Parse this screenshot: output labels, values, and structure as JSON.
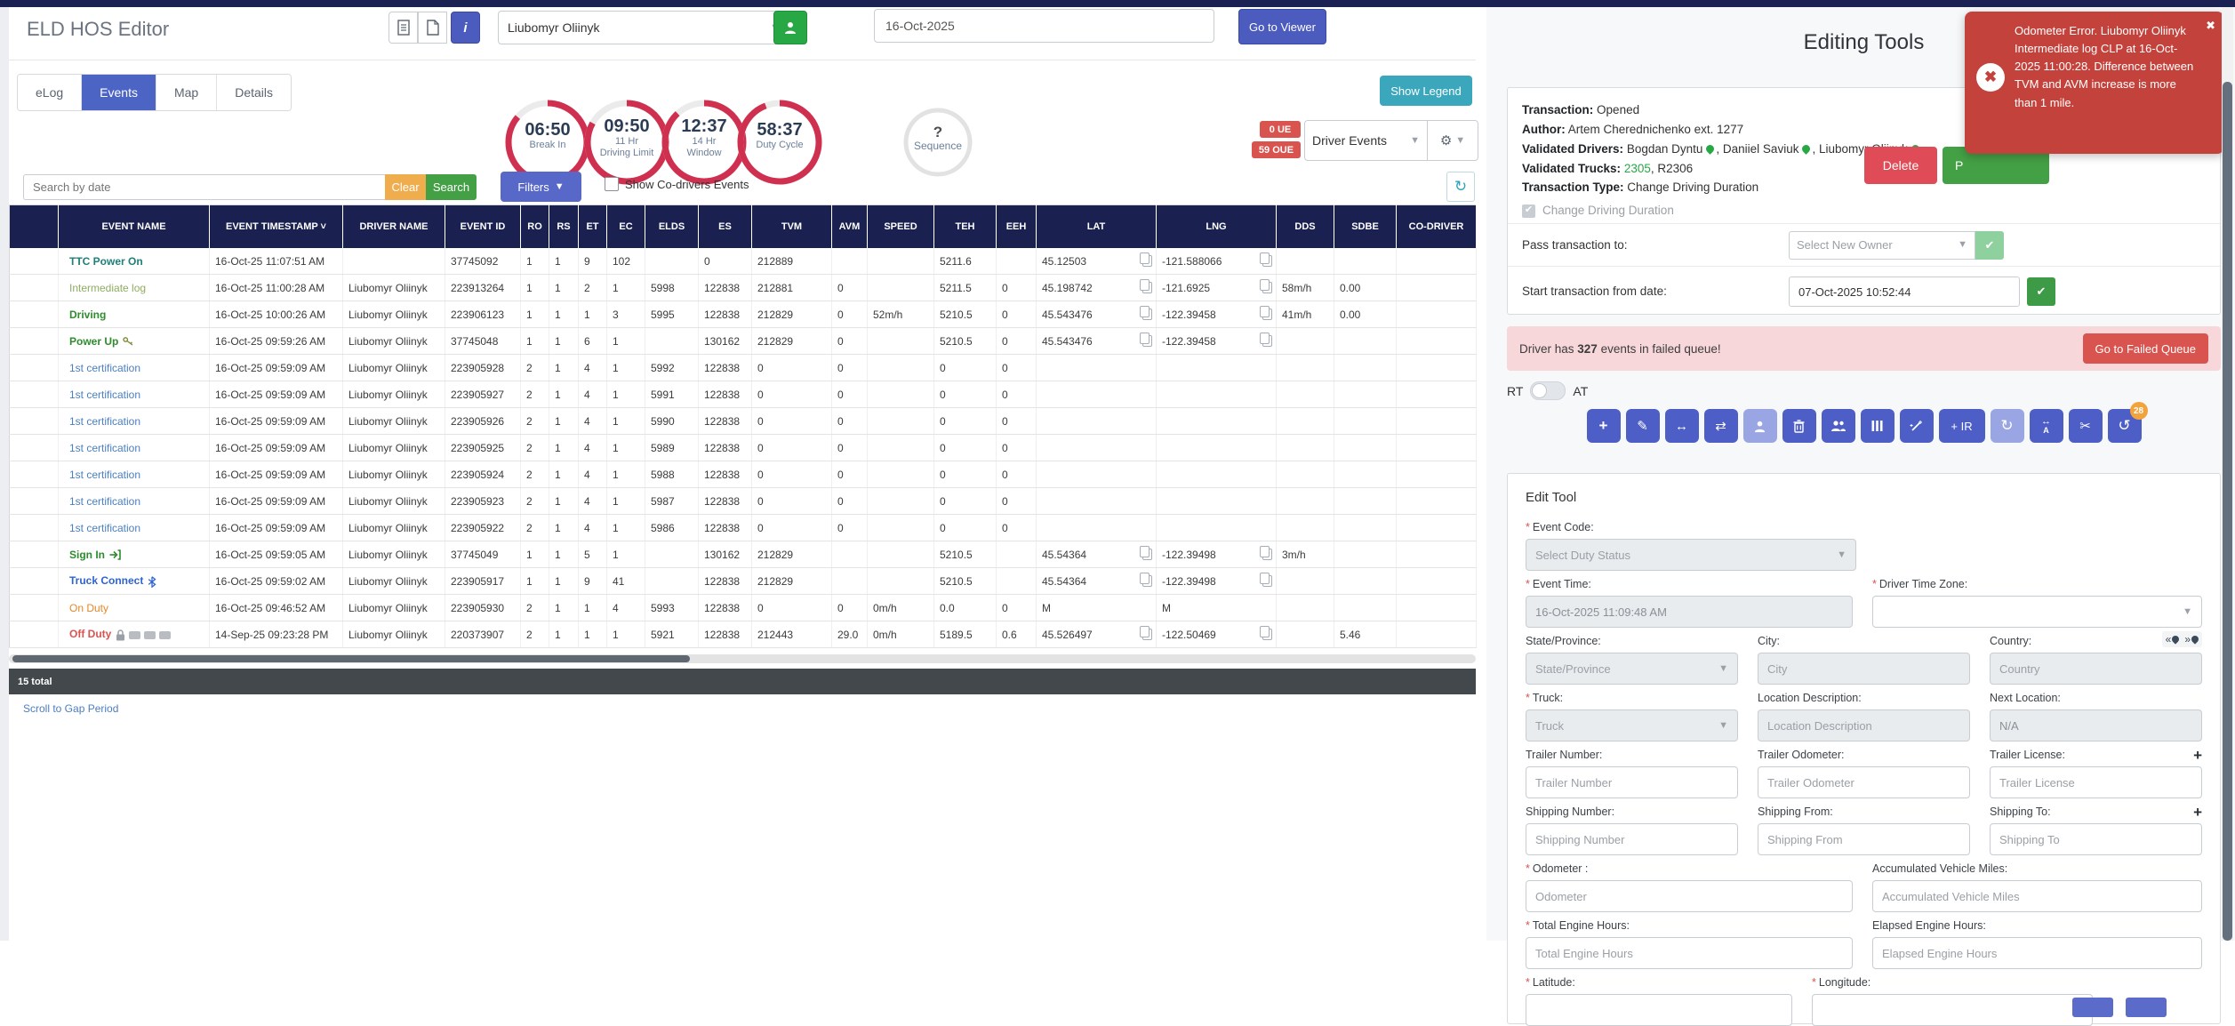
{
  "header": {
    "title": "ELD HOS Editor",
    "driver": "Liubomyr Oliinyk",
    "date": "16-Oct-2025",
    "viewer_btn": "Go to Viewer",
    "info_btn": "i"
  },
  "icons": {
    "doc": "document-icon",
    "page": "note-icon",
    "info": "info-icon",
    "person": "person-icon",
    "gear": "gear-icon",
    "refresh": "refresh-icon",
    "copy": "copy-icon",
    "key": "key-icon",
    "signin": "sign-in-icon",
    "bluetooth": "bluetooth-icon",
    "lock": "lock-icon",
    "camera": "camera-icon",
    "pin": "pushpin-icon",
    "close": "close-icon",
    "error": "error-circle-icon"
  },
  "tabs": [
    {
      "label": "eLog"
    },
    {
      "label": "Events"
    },
    {
      "label": "Map"
    },
    {
      "label": "Details"
    }
  ],
  "gauges": [
    {
      "value": "06:50",
      "line1": "Break In",
      "line2": ""
    },
    {
      "value": "09:50",
      "line1": "11 Hr",
      "line2": "Driving Limit"
    },
    {
      "value": "12:37",
      "line1": "14 Hr",
      "line2": "Window"
    },
    {
      "value": "58:37",
      "line1": "Duty Cycle",
      "line2": ""
    }
  ],
  "sequence": {
    "value": "?",
    "label": "Sequence"
  },
  "legend_btn": "Show Legend",
  "queue_badges": {
    "ue": "0 UE",
    "oue": "59 OUE"
  },
  "events_dropdown": "Driver Events",
  "search": {
    "placeholder": "Search by date",
    "clear": "Clear",
    "search": "Search",
    "filters": "Filters",
    "show_codrivers": "Show Co-drivers Events",
    "refresh_glyph": "↻"
  },
  "table": {
    "columns": [
      "",
      "EVENT NAME",
      "EVENT TIMESTAMP",
      "DRIVER NAME",
      "EVENT ID",
      "RO",
      "RS",
      "ET",
      "EC",
      "ELDS",
      "ES",
      "TVM",
      "AVM",
      "SPEED",
      "TEH",
      "EEH",
      "LAT",
      "LNG",
      "DDS",
      "SDBE",
      "CO-DRIVER"
    ],
    "rows": [
      {
        "style": "n-teal",
        "name": "TTC Power On",
        "icon": "",
        "ts": "16-Oct-25 11:07:51 AM",
        "driver": "",
        "id": "37745092",
        "ro": "1",
        "rs": "1",
        "et": "9",
        "ec": "102",
        "elds": "",
        "es": "0",
        "tvm": "212889",
        "avm": "",
        "speed": "",
        "teh": "5211.6",
        "eeh": "",
        "lat": "45.12503",
        "lng": "-121.588066",
        "geo_copy": true,
        "dds": "",
        "sdbe": "",
        "codriver": ""
      },
      {
        "style": "n-lgreen",
        "name": "Intermediate log",
        "icon": "",
        "ts": "16-Oct-25 11:00:28 AM",
        "driver": "Liubomyr Oliinyk",
        "id": "223913264",
        "ro": "1",
        "rs": "1",
        "et": "2",
        "ec": "1",
        "elds": "5998",
        "es": "122838",
        "tvm": "212881",
        "avm": "0",
        "speed": "",
        "teh": "5211.5",
        "eeh": "0",
        "lat": "45.198742",
        "lng": "-121.6925",
        "geo_copy": true,
        "dds": "58m/h",
        "sdbe": "0.00",
        "codriver": ""
      },
      {
        "style": "n-green",
        "name": "Driving",
        "icon": "",
        "ts": "16-Oct-25 10:00:26 AM",
        "driver": "Liubomyr Oliinyk",
        "id": "223906123",
        "ro": "1",
        "rs": "1",
        "et": "1",
        "ec": "3",
        "elds": "5995",
        "es": "122838",
        "tvm": "212829",
        "avm": "0",
        "speed": "52m/h",
        "teh": "5210.5",
        "eeh": "0",
        "lat": "45.543476",
        "lng": "-122.39458",
        "geo_copy": true,
        "dds": "41m/h",
        "sdbe": "0.00",
        "codriver": ""
      },
      {
        "style": "n-green",
        "name": "Power Up",
        "icon": "key",
        "ts": "16-Oct-25 09:59:26 AM",
        "driver": "Liubomyr Oliinyk",
        "id": "37745048",
        "ro": "1",
        "rs": "1",
        "et": "6",
        "ec": "1",
        "elds": "",
        "es": "130162",
        "tvm": "212829",
        "avm": "0",
        "speed": "",
        "teh": "5210.5",
        "eeh": "0",
        "lat": "45.543476",
        "lng": "-122.39458",
        "geo_copy": true,
        "dds": "",
        "sdbe": "",
        "codriver": ""
      },
      {
        "style": "n-blue",
        "name": "1st certification",
        "icon": "",
        "ts": "16-Oct-25 09:59:09 AM",
        "driver": "Liubomyr Oliinyk",
        "id": "223905928",
        "ro": "2",
        "rs": "1",
        "et": "4",
        "ec": "1",
        "elds": "5992",
        "es": "122838",
        "tvm": "0",
        "avm": "0",
        "speed": "",
        "teh": "0",
        "eeh": "0",
        "lat": "",
        "lng": "",
        "geo_copy": false,
        "dds": "",
        "sdbe": "",
        "codriver": ""
      },
      {
        "style": "n-blue",
        "name": "1st certification",
        "icon": "",
        "ts": "16-Oct-25 09:59:09 AM",
        "driver": "Liubomyr Oliinyk",
        "id": "223905927",
        "ro": "2",
        "rs": "1",
        "et": "4",
        "ec": "1",
        "elds": "5991",
        "es": "122838",
        "tvm": "0",
        "avm": "0",
        "speed": "",
        "teh": "0",
        "eeh": "0",
        "lat": "",
        "lng": "",
        "geo_copy": false,
        "dds": "",
        "sdbe": "",
        "codriver": ""
      },
      {
        "style": "n-blue",
        "name": "1st certification",
        "icon": "",
        "ts": "16-Oct-25 09:59:09 AM",
        "driver": "Liubomyr Oliinyk",
        "id": "223905926",
        "ro": "2",
        "rs": "1",
        "et": "4",
        "ec": "1",
        "elds": "5990",
        "es": "122838",
        "tvm": "0",
        "avm": "0",
        "speed": "",
        "teh": "0",
        "eeh": "0",
        "lat": "",
        "lng": "",
        "geo_copy": false,
        "dds": "",
        "sdbe": "",
        "codriver": ""
      },
      {
        "style": "n-blue",
        "name": "1st certification",
        "icon": "",
        "ts": "16-Oct-25 09:59:09 AM",
        "driver": "Liubomyr Oliinyk",
        "id": "223905925",
        "ro": "2",
        "rs": "1",
        "et": "4",
        "ec": "1",
        "elds": "5989",
        "es": "122838",
        "tvm": "0",
        "avm": "0",
        "speed": "",
        "teh": "0",
        "eeh": "0",
        "lat": "",
        "lng": "",
        "geo_copy": false,
        "dds": "",
        "sdbe": "",
        "codriver": ""
      },
      {
        "style": "n-blue",
        "name": "1st certification",
        "icon": "",
        "ts": "16-Oct-25 09:59:09 AM",
        "driver": "Liubomyr Oliinyk",
        "id": "223905924",
        "ro": "2",
        "rs": "1",
        "et": "4",
        "ec": "1",
        "elds": "5988",
        "es": "122838",
        "tvm": "0",
        "avm": "0",
        "speed": "",
        "teh": "0",
        "eeh": "0",
        "lat": "",
        "lng": "",
        "geo_copy": false,
        "dds": "",
        "sdbe": "",
        "codriver": ""
      },
      {
        "style": "n-blue",
        "name": "1st certification",
        "icon": "",
        "ts": "16-Oct-25 09:59:09 AM",
        "driver": "Liubomyr Oliinyk",
        "id": "223905923",
        "ro": "2",
        "rs": "1",
        "et": "4",
        "ec": "1",
        "elds": "5987",
        "es": "122838",
        "tvm": "0",
        "avm": "0",
        "speed": "",
        "teh": "0",
        "eeh": "0",
        "lat": "",
        "lng": "",
        "geo_copy": false,
        "dds": "",
        "sdbe": "",
        "codriver": ""
      },
      {
        "style": "n-blue",
        "name": "1st certification",
        "icon": "",
        "ts": "16-Oct-25 09:59:09 AM",
        "driver": "Liubomyr Oliinyk",
        "id": "223905922",
        "ro": "2",
        "rs": "1",
        "et": "4",
        "ec": "1",
        "elds": "5986",
        "es": "122838",
        "tvm": "0",
        "avm": "0",
        "speed": "",
        "teh": "0",
        "eeh": "0",
        "lat": "",
        "lng": "",
        "geo_copy": false,
        "dds": "",
        "sdbe": "",
        "codriver": ""
      },
      {
        "style": "n-green",
        "name": "Sign In",
        "icon": "signin",
        "ts": "16-Oct-25 09:59:05 AM",
        "driver": "Liubomyr Oliinyk",
        "id": "37745049",
        "ro": "1",
        "rs": "1",
        "et": "5",
        "ec": "1",
        "elds": "",
        "es": "130162",
        "tvm": "212829",
        "avm": "",
        "speed": "",
        "teh": "5210.5",
        "eeh": "",
        "lat": "45.54364",
        "lng": "-122.39498",
        "geo_copy": true,
        "dds": "3m/h",
        "sdbe": "",
        "codriver": ""
      },
      {
        "style": "n-bblue",
        "name": "Truck Connect",
        "icon": "bluetooth",
        "ts": "16-Oct-25 09:59:02 AM",
        "driver": "Liubomyr Oliinyk",
        "id": "223905917",
        "ro": "1",
        "rs": "1",
        "et": "9",
        "ec": "41",
        "elds": "",
        "es": "122838",
        "tvm": "212829",
        "avm": "",
        "speed": "",
        "teh": "5210.5",
        "eeh": "",
        "lat": "45.54364",
        "lng": "-122.39498",
        "geo_copy": true,
        "dds": "",
        "sdbe": "",
        "codriver": ""
      },
      {
        "style": "n-orange",
        "name": "On Duty",
        "icon": "",
        "ts": "16-Oct-25 09:46:52 AM",
        "driver": "Liubomyr Oliinyk",
        "id": "223905930",
        "ro": "2",
        "rs": "1",
        "et": "1",
        "ec": "4",
        "elds": "5993",
        "es": "122838",
        "tvm": "0",
        "avm": "0",
        "speed": "0m/h",
        "teh": "0.0",
        "eeh": "0",
        "lat": "M",
        "lng": "M",
        "geo_copy": false,
        "dds": "",
        "sdbe": "",
        "codriver": ""
      },
      {
        "style": "n-red",
        "name": "Off Duty",
        "icon": "lock",
        "ts": "14-Sep-25 09:23:28 PM",
        "driver": "Liubomyr Oliinyk",
        "id": "220373907",
        "ro": "2",
        "rs": "1",
        "et": "1",
        "ec": "1",
        "elds": "5921",
        "es": "122838",
        "tvm": "212443",
        "avm": "29.0",
        "speed": "0m/h",
        "teh": "5189.5",
        "eeh": "0.6",
        "lat": "45.526497",
        "lng": "-122.50469",
        "geo_copy": true,
        "dds": "",
        "sdbe": "5.46",
        "codriver": ""
      }
    ],
    "total": "15 total",
    "gap_link": "Scroll to Gap Period"
  },
  "editing": {
    "title": "Editing Tools",
    "transaction_label": "Transaction:",
    "transaction": "Opened",
    "author_label": "Author:",
    "author": "Artem Cherednichenko ext. 1277",
    "drivers_label": "Validated Drivers:",
    "drivers": [
      "Bogdan Dyntu",
      "Daniiel Saviuk",
      "Liubomyr Oliinyk"
    ],
    "trucks_label": "Validated Trucks:",
    "truck_green": "2305",
    "truck_rest": ", R2306",
    "type_label": "Transaction Type:",
    "type": "Change Driving Duration",
    "change_checkbox": "Change Driving Duration",
    "delete_btn": "Delete",
    "process_btn": "P",
    "pass_label": "Pass transaction to:",
    "pass_placeholder": "Select New Owner",
    "start_label": "Start transaction from date:",
    "start_value": "07-Oct-2025 10:52:44",
    "failed_prefix": "Driver has",
    "failed_count": "327",
    "failed_suffix": "events in failed queue!",
    "failed_btn": "Go to Failed Queue",
    "rt": "RT",
    "at": "AT",
    "toolbar": {
      "icons": [
        "plus-icon",
        "pencil-icon",
        "arrow-left-right-icon",
        "swap-arrows-icon",
        "person-icon",
        "trash-icon",
        "people-icon",
        "split-bars-icon",
        "magic-wand-icon",
        "plus-ir-button",
        "refresh-icon",
        "text-width-icon",
        "scissors-icon",
        "undo-icon"
      ],
      "ir_label": "+ IR",
      "badge": "28"
    }
  },
  "edit_tool": {
    "title": "Edit Tool",
    "event_code_label": "Event Code:",
    "event_code_placeholder": "Select Duty Status",
    "event_time_label": "Event Time:",
    "event_time_value": "16-Oct-2025 11:09:48 AM",
    "tz_label": "Driver Time Zone:",
    "state_label": "State/Province:",
    "state_placeholder": "State/Province",
    "city_label": "City:",
    "city_placeholder": "City",
    "country_label": "Country:",
    "country_placeholder": "Country",
    "truck_label": "Truck:",
    "truck_placeholder": "Truck",
    "locdesc_label": "Location Description:",
    "locdesc_placeholder": "Location Description",
    "nextloc_label": "Next Location:",
    "nextloc_value": "N/A",
    "trailer_num_label": "Trailer Number:",
    "trailer_num_placeholder": "Trailer Number",
    "trailer_odo_label": "Trailer Odometer:",
    "trailer_odo_placeholder": "Trailer Odometer",
    "trailer_lic_label": "Trailer License:",
    "trailer_lic_placeholder": "Trailer License",
    "ship_num_label": "Shipping Number:",
    "ship_num_placeholder": "Shipping Number",
    "ship_from_label": "Shipping From:",
    "ship_from_placeholder": "Shipping From",
    "ship_to_label": "Shipping To:",
    "ship_to_placeholder": "Shipping To",
    "odometer_label": "Odometer :",
    "odometer_placeholder": "Odometer",
    "avm_label": "Accumulated Vehicle Miles:",
    "avm_placeholder": "Accumulated Vehicle Miles",
    "teh_label": "Total Engine Hours:",
    "teh_placeholder": "Total Engine Hours",
    "eeh_label": "Elapsed Engine Hours:",
    "eeh_placeholder": "Elapsed Engine Hours",
    "lat_label": "Latitude:",
    "lng_label": "Longitude:"
  },
  "toast": {
    "message": "Odometer Error. Liubomyr Oliinyk Intermediate log CLP at 16-Oct-2025 11:00:28. Difference between TVM and AVM increase is more than 1 mile.",
    "close": "✖"
  }
}
